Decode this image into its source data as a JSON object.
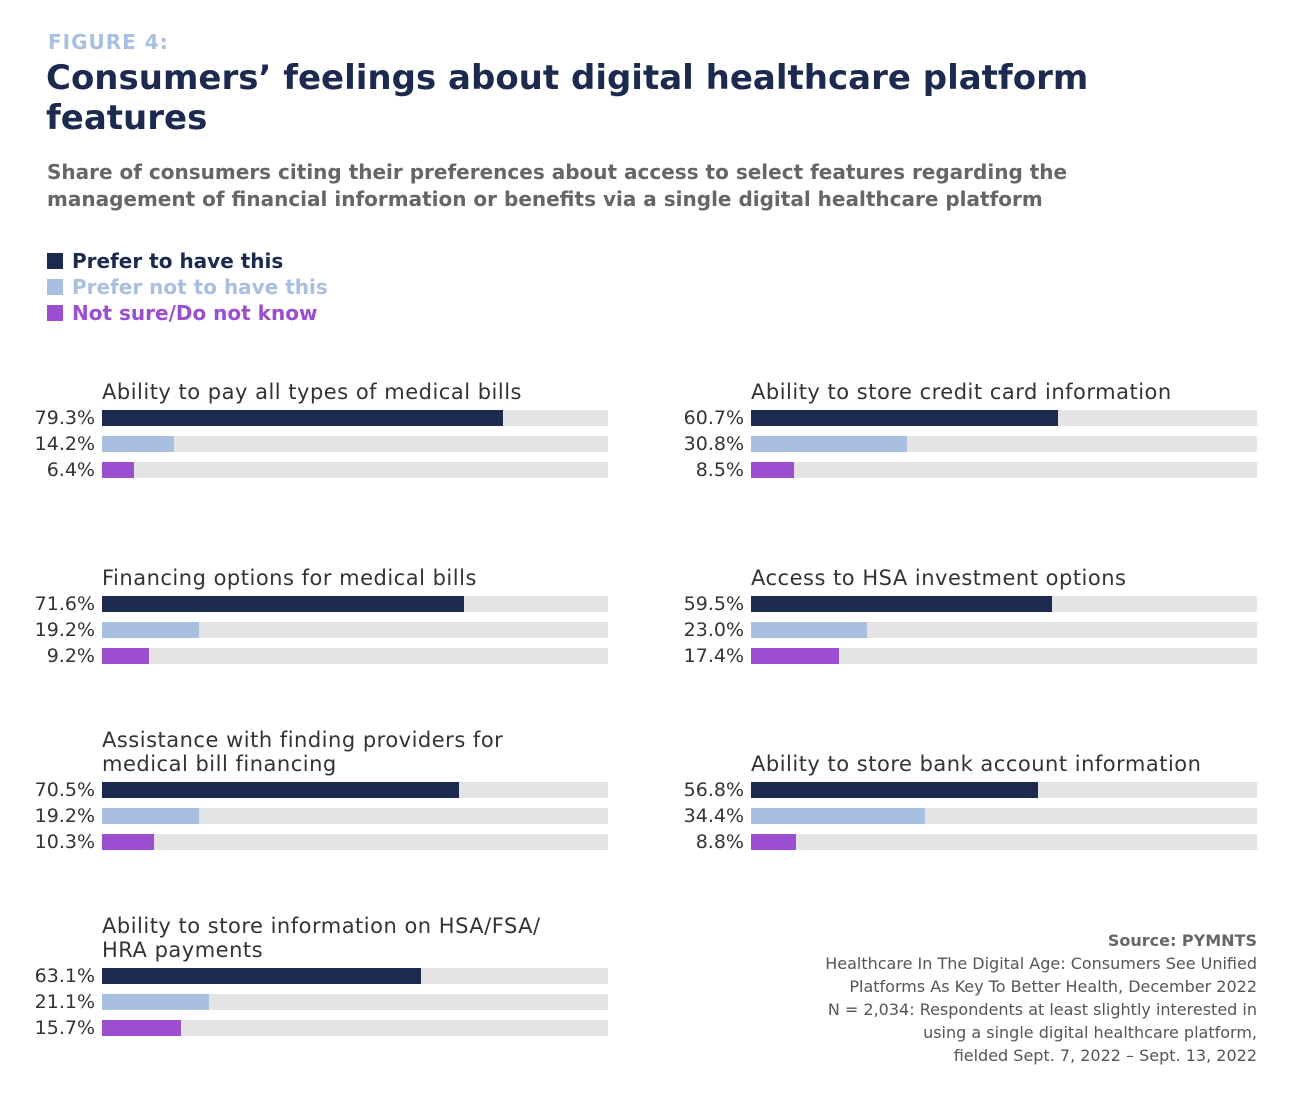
{
  "chart_data": {
    "type": "bar",
    "figure_label": "FIGURE 4:",
    "title": "Consumers’ feelings about digital healthcare platform features",
    "subtitle": "Share of consumers citing their preferences about access to select features regarding the management of financial information or benefits via a single digital healthcare platform",
    "categories": [
      "Ability to pay all types of medical bills",
      "Financing options for medical bills",
      "Assistance with finding providers for medical bill financing",
      "Ability to store information on HSA/FSA/ HRA payments",
      "Ability to store credit card information",
      "Access to HSA investment options",
      "Ability to store bank account information"
    ],
    "series": [
      {
        "name": "Prefer to have this",
        "color": "#1b2a4e",
        "values": [
          79.3,
          71.6,
          70.5,
          63.1,
          60.7,
          59.5,
          56.8
        ],
        "value_labels": [
          "79.3%",
          "71.6%",
          "70.5%",
          "63.1%",
          "60.7%",
          "59.5%",
          "56.8%"
        ]
      },
      {
        "name": "Prefer not to have this",
        "color": "#a9bfe0",
        "values": [
          14.2,
          19.2,
          19.2,
          21.1,
          30.8,
          23.0,
          34.4
        ],
        "value_labels": [
          "14.2%",
          "19.2%",
          "19.2%",
          "21.1%",
          "30.8%",
          "23.0%",
          "34.4%"
        ]
      },
      {
        "name": "Not sure/Do not know",
        "color": "#9b4fd0",
        "values": [
          6.4,
          9.2,
          10.3,
          15.7,
          8.5,
          17.4,
          8.8
        ],
        "value_labels": [
          "6.4%",
          "9.2%",
          "10.3%",
          "15.7%",
          "8.5%",
          "17.4%",
          "8.8%"
        ]
      }
    ],
    "xlim": [
      0,
      100
    ],
    "track_color": "#e4e4e4",
    "source_title": "Source: PYMNTS",
    "source_lines": [
      "Healthcare In The Digital Age: Consumers See Unified",
      "Platforms As Key To Better Health, December 2022",
      "N = 2,034: Respondents at least slightly interested in",
      "using a single digital healthcare platform,",
      "fielded Sept. 7, 2022 – Sept. 13, 2022"
    ]
  }
}
